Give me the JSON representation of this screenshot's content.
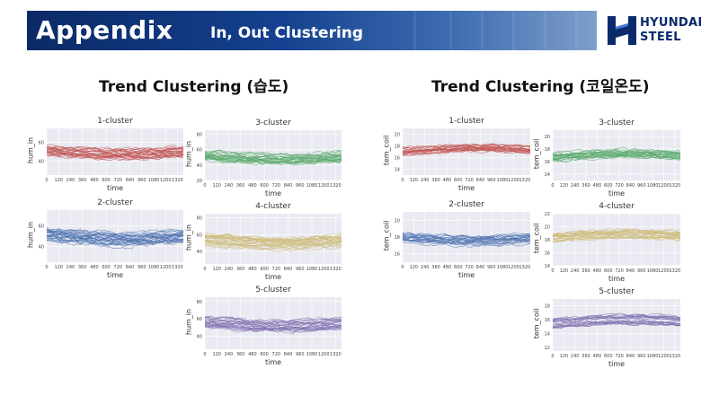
{
  "header": {
    "title": "Appendix",
    "subtitle": "In, Out Clustering",
    "logo_line1": "HYUNDAI",
    "logo_line2": "STEEL",
    "logo_color": "#0a2a6b"
  },
  "sections": {
    "left_title": "Trend Clustering (습도)",
    "right_title": "Trend Clustering (코일온도)"
  },
  "chart_data": [
    {
      "type": "line",
      "group": "humidity",
      "title": "1-cluster",
      "xlabel": "time",
      "ylabel": "hum_in",
      "color": "#c0504d",
      "xticks": [
        0,
        120,
        240,
        360,
        480,
        600,
        720,
        840,
        960,
        1080,
        1200,
        1320
      ],
      "yticks": [
        40,
        60
      ],
      "ylim": [
        25,
        75
      ],
      "center": 50,
      "spread": 7,
      "n_lines": 26,
      "shape": "dip"
    },
    {
      "type": "line",
      "group": "humidity",
      "title": "2-cluster",
      "xlabel": "time",
      "ylabel": "hum_in",
      "color": "#4c72b0",
      "xticks": [
        0,
        120,
        240,
        360,
        480,
        600,
        720,
        840,
        960,
        1080,
        1200,
        1320
      ],
      "yticks": [
        40,
        60
      ],
      "ylim": [
        25,
        75
      ],
      "center": 50,
      "spread": 9,
      "n_lines": 30,
      "shape": "dip"
    },
    {
      "type": "line",
      "group": "humidity",
      "title": "3-cluster",
      "xlabel": "time",
      "ylabel": "hum_in",
      "color": "#55a868",
      "xticks": [
        0,
        120,
        240,
        360,
        480,
        600,
        720,
        840,
        960,
        1080,
        1200,
        1320
      ],
      "yticks": [
        20,
        40,
        60,
        80
      ],
      "ylim": [
        20,
        85
      ],
      "center": 50,
      "spread": 9,
      "n_lines": 26,
      "shape": "dip"
    },
    {
      "type": "line",
      "group": "humidity",
      "title": "4-cluster",
      "xlabel": "time",
      "ylabel": "hum_in",
      "color": "#ccb974",
      "xticks": [
        0,
        120,
        240,
        360,
        480,
        600,
        720,
        840,
        960,
        1080,
        1200,
        1320
      ],
      "yticks": [
        40,
        60,
        80
      ],
      "ylim": [
        25,
        85
      ],
      "center": 52,
      "spread": 9,
      "n_lines": 28,
      "shape": "dip"
    },
    {
      "type": "line",
      "group": "humidity",
      "title": "5-cluster",
      "xlabel": "time",
      "ylabel": "hum_in",
      "color": "#8172b2",
      "xticks": [
        0,
        120,
        240,
        360,
        480,
        600,
        720,
        840,
        960,
        1080,
        1200,
        1320
      ],
      "yticks": [
        40,
        60,
        80
      ],
      "ylim": [
        25,
        85
      ],
      "center": 55,
      "spread": 9,
      "n_lines": 28,
      "shape": "dip"
    },
    {
      "type": "line",
      "group": "coil_temperature",
      "title": "1-cluster",
      "xlabel": "time",
      "ylabel": "tem_coil",
      "color": "#c0504d",
      "xticks": [
        0,
        120,
        240,
        360,
        480,
        600,
        720,
        840,
        960,
        1080,
        1200,
        1320
      ],
      "yticks": [
        14,
        16,
        18,
        20
      ],
      "ylim": [
        13,
        21
      ],
      "center": 17.2,
      "spread": 0.9,
      "n_lines": 22,
      "shape": "rise"
    },
    {
      "type": "line",
      "group": "coil_temperature",
      "title": "2-cluster",
      "xlabel": "time",
      "ylabel": "tem_coil",
      "color": "#4c72b0",
      "xticks": [
        0,
        120,
        240,
        360,
        480,
        600,
        720,
        840,
        960,
        1080,
        1200,
        1320
      ],
      "yticks": [
        16,
        18,
        20
      ],
      "ylim": [
        15,
        21
      ],
      "center": 17.8,
      "spread": 0.8,
      "n_lines": 24,
      "shape": "dip"
    },
    {
      "type": "line",
      "group": "coil_temperature",
      "title": "3-cluster",
      "xlabel": "time",
      "ylabel": "tem_coil",
      "color": "#55a868",
      "xticks": [
        0,
        120,
        240,
        360,
        480,
        600,
        720,
        840,
        960,
        1080,
        1200,
        1320
      ],
      "yticks": [
        14,
        16,
        18,
        20
      ],
      "ylim": [
        13,
        21
      ],
      "center": 16.8,
      "spread": 0.9,
      "n_lines": 24,
      "shape": "rise"
    },
    {
      "type": "line",
      "group": "coil_temperature",
      "title": "4-cluster",
      "xlabel": "time",
      "ylabel": "tem_coil",
      "color": "#ccb974",
      "xticks": [
        0,
        120,
        240,
        360,
        480,
        600,
        720,
        840,
        960,
        1080,
        1200,
        1320
      ],
      "yticks": [
        14,
        16,
        18,
        20,
        22
      ],
      "ylim": [
        14,
        22
      ],
      "center": 18.4,
      "spread": 0.9,
      "n_lines": 24,
      "shape": "rise"
    },
    {
      "type": "line",
      "group": "coil_temperature",
      "title": "5-cluster",
      "xlabel": "time",
      "ylabel": "tem_coil",
      "color": "#8172b2",
      "xticks": [
        0,
        120,
        240,
        360,
        480,
        600,
        720,
        840,
        960,
        1080,
        1200,
        1320
      ],
      "yticks": [
        12,
        14,
        16,
        18
      ],
      "ylim": [
        11.5,
        19
      ],
      "center": 15.6,
      "spread": 0.9,
      "n_lines": 26,
      "shape": "rise"
    }
  ]
}
